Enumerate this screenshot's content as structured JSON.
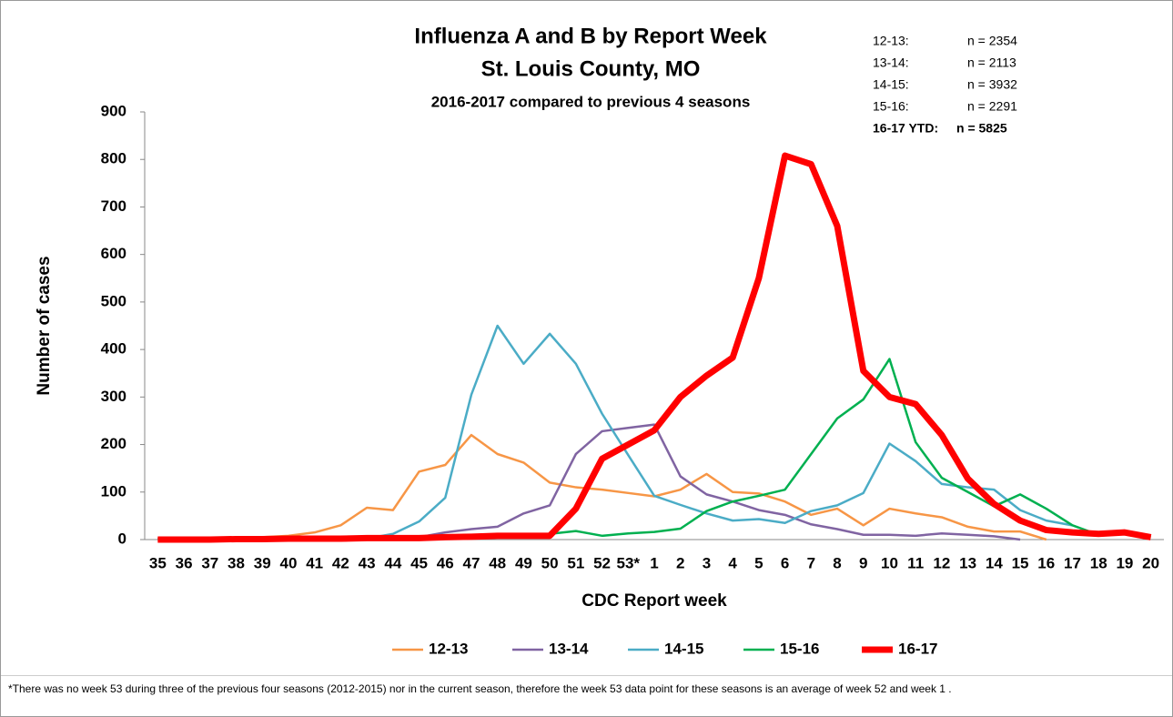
{
  "chart_data": {
    "type": "line",
    "title": "Influenza A and B by Report Week",
    "subtitle": "St. Louis County, MO",
    "subtitle2": "2016-2017 compared to previous 4 seasons",
    "summary": [
      {
        "label": "12-13:",
        "text": "n = 2354"
      },
      {
        "label": "13-14:",
        "text": "n = 2113"
      },
      {
        "label": "14-15:",
        "text": "n = 3932"
      },
      {
        "label": "15-16:",
        "text": "n = 2291"
      },
      {
        "label": "16-17 YTD:",
        "text": "n =  5825"
      }
    ],
    "x_label": "CDC Report week",
    "y_label": "Number of cases",
    "categories": [
      "35",
      "36",
      "37",
      "38",
      "39",
      "40",
      "41",
      "42",
      "43",
      "44",
      "45",
      "46",
      "47",
      "48",
      "49",
      "50",
      "51",
      "52",
      "53*",
      "1",
      "2",
      "3",
      "4",
      "5",
      "6",
      "7",
      "8",
      "9",
      "10",
      "11",
      "12",
      "13",
      "14",
      "15",
      "16",
      "17",
      "18",
      "19",
      "20"
    ],
    "ylim": [
      0,
      900
    ],
    "yticks": [
      0,
      100,
      200,
      300,
      400,
      500,
      600,
      700,
      800,
      900
    ],
    "series": [
      {
        "name": "12-13",
        "color": "#f79646",
        "width": 2.5,
        "values": [
          0,
          0,
          1,
          2,
          5,
          8,
          15,
          30,
          67,
          62,
          143,
          157,
          220,
          180,
          162,
          120,
          110,
          105,
          98,
          91,
          105,
          138,
          100,
          97,
          80,
          52,
          65,
          30,
          65,
          55,
          47,
          27,
          17,
          17,
          0,
          null,
          null,
          null,
          null
        ]
      },
      {
        "name": "13-14",
        "color": "#8064a2",
        "width": 2.5,
        "values": [
          2,
          2,
          2,
          3,
          3,
          3,
          4,
          4,
          4,
          5,
          5,
          15,
          22,
          27,
          55,
          72,
          180,
          228,
          235,
          242,
          133,
          95,
          80,
          62,
          52,
          32,
          22,
          10,
          10,
          8,
          13,
          10,
          7,
          0,
          null,
          null,
          null,
          null,
          null
        ]
      },
      {
        "name": "14-15",
        "color": "#4bacc6",
        "width": 2.5,
        "values": [
          0,
          0,
          0,
          1,
          1,
          1,
          2,
          2,
          2,
          12,
          38,
          88,
          305,
          450,
          370,
          433,
          370,
          265,
          178,
          92,
          73,
          55,
          40,
          43,
          35,
          60,
          72,
          98,
          202,
          165,
          117,
          110,
          105,
          62,
          40,
          30,
          null,
          null,
          null
        ]
      },
      {
        "name": "15-16",
        "color": "#00b050",
        "width": 2.5,
        "values": [
          2,
          2,
          3,
          3,
          4,
          4,
          5,
          5,
          6,
          6,
          6,
          7,
          8,
          8,
          8,
          12,
          18,
          8,
          13,
          16,
          23,
          60,
          80,
          92,
          105,
          180,
          255,
          295,
          380,
          205,
          130,
          100,
          70,
          95,
          65,
          30,
          10,
          12,
          5
        ]
      },
      {
        "name": "16-17",
        "color": "#ff0000",
        "width": 7,
        "values": [
          0,
          0,
          0,
          1,
          1,
          2,
          2,
          2,
          3,
          3,
          3,
          5,
          6,
          8,
          8,
          8,
          65,
          170,
          200,
          230,
          300,
          345,
          383,
          550,
          808,
          790,
          660,
          355,
          300,
          285,
          220,
          128,
          75,
          40,
          20,
          15,
          12,
          15,
          5
        ]
      }
    ],
    "footnote": "*There was no week 53 during three of the previous four seasons (2012-2015) nor in the current season, therefore the week 53 data point for these seasons is an average of week 52 and week 1 ."
  }
}
